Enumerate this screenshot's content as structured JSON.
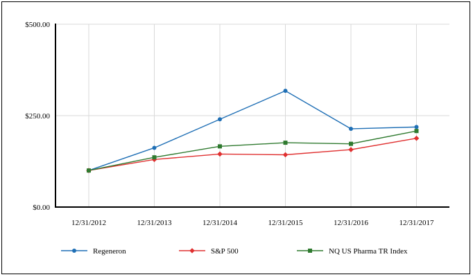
{
  "chart_data": {
    "type": "line",
    "title": "",
    "xlabel": "",
    "ylabel": "",
    "categories": [
      "12/31/2012",
      "12/31/2013",
      "12/31/2014",
      "12/31/2015",
      "12/31/2016",
      "12/31/2017"
    ],
    "ylim": [
      0,
      500
    ],
    "yticks": [
      0,
      250,
      500
    ],
    "ytick_labels": [
      "$0.00",
      "$250.00",
      "$500.00"
    ],
    "grid": true,
    "legend_position": "bottom",
    "series": [
      {
        "name": "Regeneron",
        "color": "#1f6fb5",
        "marker": "circle",
        "values": [
          100,
          162,
          240,
          318,
          214,
          219
        ]
      },
      {
        "name": "S&P 500",
        "color": "#e03030",
        "marker": "diamond",
        "values": [
          100,
          130,
          145,
          143,
          157,
          188
        ]
      },
      {
        "name": "NQ US Pharma TR Index",
        "color": "#2f7a2f",
        "marker": "square",
        "values": [
          100,
          136,
          166,
          176,
          173,
          208
        ]
      }
    ]
  }
}
